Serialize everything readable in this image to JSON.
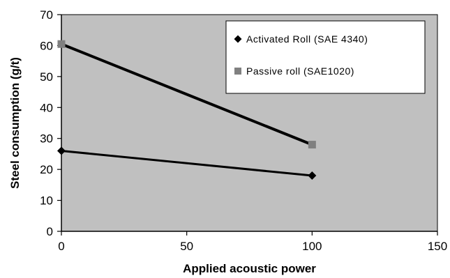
{
  "chart_data": {
    "type": "line",
    "title": "",
    "xlabel": "Applied acoustic power",
    "ylabel": "Steel consumption (g/t)",
    "xlim": [
      0,
      150
    ],
    "ylim": [
      0,
      70
    ],
    "xticks": [
      0,
      50,
      100,
      150
    ],
    "yticks": [
      0,
      10,
      20,
      30,
      40,
      50,
      60,
      70
    ],
    "grid": false,
    "legend_position": "top-right",
    "plot_background": "#c0c0c0",
    "series": [
      {
        "name": "Activated Roll (SAE 4340)",
        "marker": "diamond",
        "line_color": "#000000",
        "marker_color": "#000000",
        "x": [
          0,
          100
        ],
        "y": [
          26,
          18
        ]
      },
      {
        "name": "Passive roll (SAE1020)",
        "marker": "square",
        "line_color": "#000000",
        "marker_color": "#808080",
        "x": [
          0,
          100
        ],
        "y": [
          60.5,
          28
        ]
      }
    ]
  }
}
